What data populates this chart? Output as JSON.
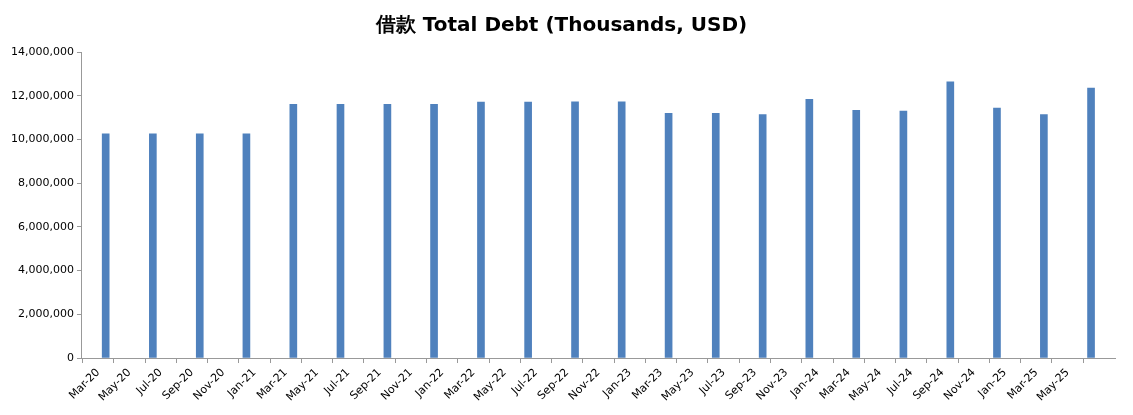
{
  "chart_data": {
    "type": "bar",
    "title": "借款 Total Debt (Thousands, USD)",
    "x": [
      "2020-03-16",
      "2020-06-16",
      "2020-09-16",
      "2020-12-16",
      "2021-03-16",
      "2021-06-16",
      "2021-09-16",
      "2021-12-16",
      "2022-03-16",
      "2022-06-16",
      "2022-09-16",
      "2022-12-16",
      "2023-03-16",
      "2023-06-16",
      "2023-09-16",
      "2023-12-16",
      "2024-03-16",
      "2024-06-16",
      "2024-09-16",
      "2024-12-16",
      "2025-03-16",
      "2025-06-16"
    ],
    "values": [
      10260000,
      10260000,
      10260000,
      10260000,
      11610000,
      11610000,
      11610000,
      11610000,
      11710000,
      11710000,
      11720000,
      11720000,
      11190000,
      11190000,
      11140000,
      11830000,
      11330000,
      11300000,
      12640000,
      11430000,
      11140000,
      12350000
    ],
    "color": "#4f81bd",
    "xlim": [
      "2020-03",
      "2025-07"
    ],
    "xticks": [
      {
        "value": "2020-03",
        "label": "Mar-20"
      },
      {
        "value": "2020-05",
        "label": "May-20"
      },
      {
        "value": "2020-07",
        "label": "Jul-20"
      },
      {
        "value": "2020-09",
        "label": "Sep-20"
      },
      {
        "value": "2020-11",
        "label": "Nov-20"
      },
      {
        "value": "2021-01",
        "label": "Jan-21"
      },
      {
        "value": "2021-03",
        "label": "Mar-21"
      },
      {
        "value": "2021-05",
        "label": "May-21"
      },
      {
        "value": "2021-07",
        "label": "Jul-21"
      },
      {
        "value": "2021-09",
        "label": "Sep-21"
      },
      {
        "value": "2021-11",
        "label": "Nov-21"
      },
      {
        "value": "2022-01",
        "label": "Jan-22"
      },
      {
        "value": "2022-03",
        "label": "Mar-22"
      },
      {
        "value": "2022-05",
        "label": "May-22"
      },
      {
        "value": "2022-07",
        "label": "Jul-22"
      },
      {
        "value": "2022-09",
        "label": "Sep-22"
      },
      {
        "value": "2022-11",
        "label": "Nov-22"
      },
      {
        "value": "2023-01",
        "label": "Jan-23"
      },
      {
        "value": "2023-03",
        "label": "Mar-23"
      },
      {
        "value": "2023-05",
        "label": "May-23"
      },
      {
        "value": "2023-07",
        "label": "Jul-23"
      },
      {
        "value": "2023-09",
        "label": "Sep-23"
      },
      {
        "value": "2023-11",
        "label": "Nov-23"
      },
      {
        "value": "2024-01",
        "label": "Jan-24"
      },
      {
        "value": "2024-03",
        "label": "Mar-24"
      },
      {
        "value": "2024-05",
        "label": "May-24"
      },
      {
        "value": "2024-07",
        "label": "Jul-24"
      },
      {
        "value": "2024-09",
        "label": "Sep-24"
      },
      {
        "value": "2024-11",
        "label": "Nov-24"
      },
      {
        "value": "2025-01",
        "label": "Jan-25"
      },
      {
        "value": "2025-03",
        "label": "Mar-25"
      },
      {
        "value": "2025-05",
        "label": "May-25"
      }
    ],
    "ylim": [
      0,
      14000000
    ],
    "yticks": [
      {
        "value": 0,
        "label": "0"
      },
      {
        "value": 2000000,
        "label": "2,000,000"
      },
      {
        "value": 4000000,
        "label": "4,000,000"
      },
      {
        "value": 6000000,
        "label": "6,000,000"
      },
      {
        "value": 8000000,
        "label": "8,000,000"
      },
      {
        "value": 10000000,
        "label": "10,000,000"
      },
      {
        "value": 12000000,
        "label": "12,000,000"
      },
      {
        "value": 14000000,
        "label": "14,000,000"
      }
    ],
    "legend": false
  }
}
